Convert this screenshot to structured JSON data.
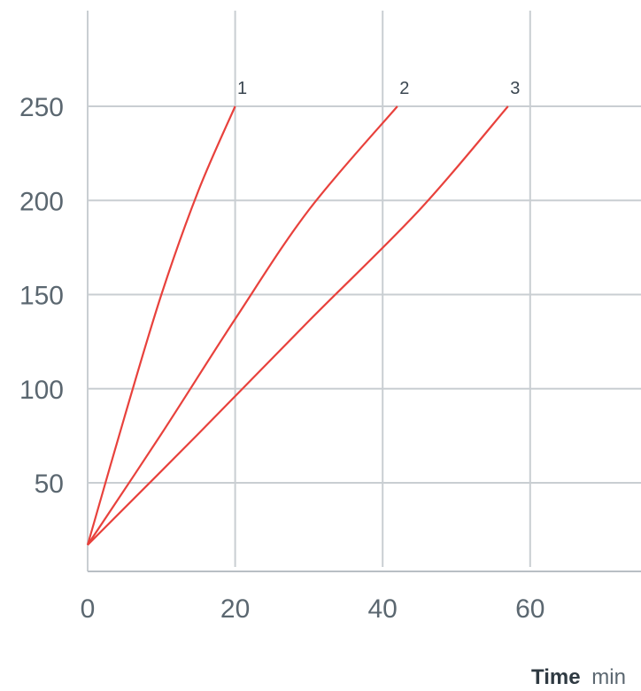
{
  "chart_data": {
    "type": "line",
    "title": "",
    "xlabel": "Time",
    "xlabel_unit": "min",
    "ylabel": "",
    "xlim": [
      0,
      75
    ],
    "ylim": [
      5,
      260
    ],
    "x_ticks": [
      0,
      20,
      40,
      60
    ],
    "y_ticks": [
      50,
      100,
      150,
      200,
      250
    ],
    "grid": true,
    "colors": {
      "series": "#e8413c",
      "grid": "#c9ced2",
      "axis": "#b9bfc4"
    },
    "series": [
      {
        "name": "1",
        "points": [
          [
            0,
            17
          ],
          [
            5,
            85
          ],
          [
            10,
            150
          ],
          [
            15,
            205
          ],
          [
            20,
            250
          ]
        ]
      },
      {
        "name": "2",
        "points": [
          [
            0,
            17
          ],
          [
            10,
            76
          ],
          [
            20,
            137
          ],
          [
            30,
            195
          ],
          [
            42,
            250
          ]
        ]
      },
      {
        "name": "3",
        "points": [
          [
            0,
            17
          ],
          [
            15,
            76
          ],
          [
            30,
            136
          ],
          [
            45,
            195
          ],
          [
            57,
            250
          ]
        ]
      }
    ]
  }
}
